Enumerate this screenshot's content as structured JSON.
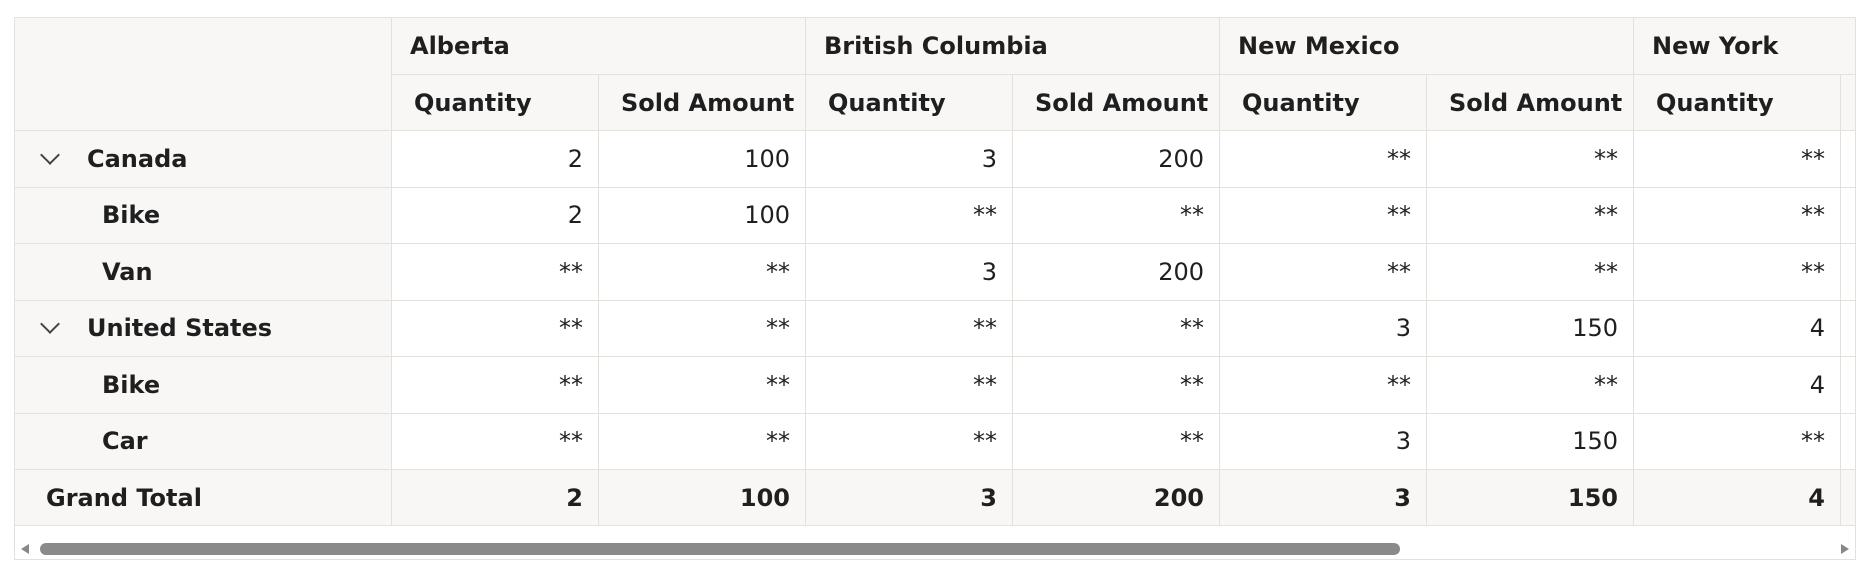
{
  "columns": {
    "regions": [
      "Alberta",
      "British Columbia",
      "New Mexico",
      "New York"
    ],
    "measures": [
      "Quantity",
      "Sold Amount"
    ]
  },
  "rows": [
    {
      "label": "Canada",
      "level": 1,
      "expanded": true,
      "values": [
        "2",
        "100",
        "3",
        "200",
        "**",
        "**",
        "**"
      ]
    },
    {
      "label": "Bike",
      "level": 2,
      "values": [
        "2",
        "100",
        "**",
        "**",
        "**",
        "**",
        "**"
      ]
    },
    {
      "label": "Van",
      "level": 2,
      "values": [
        "**",
        "**",
        "3",
        "200",
        "**",
        "**",
        "**"
      ]
    },
    {
      "label": "United States",
      "level": 1,
      "expanded": true,
      "values": [
        "**",
        "**",
        "**",
        "**",
        "3",
        "150",
        "4"
      ]
    },
    {
      "label": "Bike",
      "level": 2,
      "values": [
        "**",
        "**",
        "**",
        "**",
        "**",
        "**",
        "4"
      ]
    },
    {
      "label": "Car",
      "level": 2,
      "values": [
        "**",
        "**",
        "**",
        "**",
        "3",
        "150",
        "**"
      ]
    }
  ],
  "grand_total": {
    "label": "Grand Total",
    "values": [
      "2",
      "100",
      "3",
      "200",
      "3",
      "150",
      "4"
    ]
  }
}
